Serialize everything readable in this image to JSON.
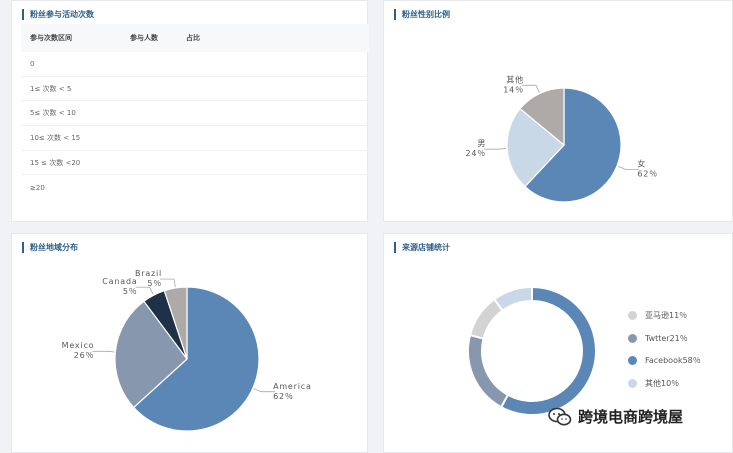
{
  "panels": {
    "activity": {
      "title": "粉丝参与活动次数",
      "columns": [
        "参与次数区间",
        "参与人数",
        "占比"
      ],
      "rows": [
        "0",
        "1≤ 次数 < 5",
        "5≤ 次数 < 10",
        "10≤ 次数 < 15",
        "15 ≤ 次数 <20",
        "≥20"
      ]
    },
    "gender": {
      "title": "粉丝性别比例"
    },
    "region": {
      "title": "粉丝地域分布"
    },
    "source": {
      "title": "来源店铺统计"
    }
  },
  "chart_data": [
    {
      "type": "pie",
      "title": "",
      "labels": [
        "女",
        "男",
        "其他"
      ],
      "values": [
        62,
        24,
        14
      ],
      "value_labels": [
        "62％",
        "24％",
        "14％"
      ],
      "colors": [
        "#5b87b7",
        "#c9d8e6",
        "#aeaaa7"
      ]
    },
    {
      "type": "pie",
      "title": "",
      "labels": [
        "America",
        "Mexico",
        "Canada",
        "Brazil"
      ],
      "values": [
        62,
        26,
        5,
        5
      ],
      "value_labels": [
        "62％",
        "26％",
        "5％",
        "5％"
      ],
      "colors": [
        "#5b87b7",
        "#8797ae",
        "#1e3148",
        "#aeaaa7"
      ]
    },
    {
      "type": "pie",
      "title": "",
      "donut": true,
      "labels": [
        "亚马逊",
        "Twtter",
        "Facebook",
        "其他"
      ],
      "values": [
        11,
        21,
        58,
        10
      ],
      "legend_labels": [
        "亚马逊11％",
        "Twtter21％",
        "Facebook58％",
        "其他10％"
      ],
      "colors": [
        "#d3d3d3",
        "#8797ae",
        "#5b87b7",
        "#c9d8e6"
      ],
      "legend": "right"
    }
  ],
  "watermark": {
    "text": "跨境电商跨境屋",
    "icon": "wechat-icon"
  }
}
